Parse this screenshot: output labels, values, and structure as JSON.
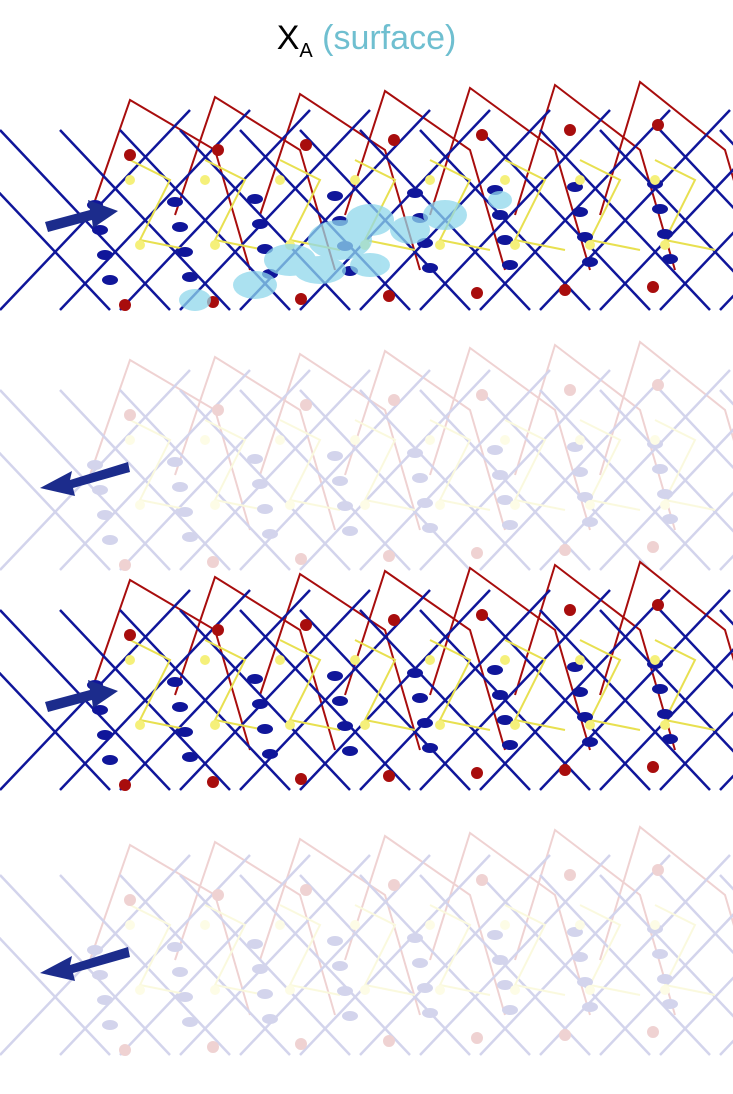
{
  "title": {
    "symbol": "X",
    "subscript": "A",
    "qualifier": "(surface)"
  },
  "layers": [
    {
      "id": "layer-1",
      "faded": false,
      "spin": "right",
      "exciton": true
    },
    {
      "id": "layer-2",
      "faded": true,
      "spin": "left",
      "exciton": false
    },
    {
      "id": "layer-3",
      "faded": false,
      "spin": "right",
      "exciton": false
    },
    {
      "id": "layer-4",
      "faded": true,
      "spin": "left",
      "exciton": false
    }
  ],
  "colors": {
    "metal_atom": "#10169a",
    "apical_atom": "#a80d0d",
    "ligand_atom": "#f5f07a",
    "spin_arrow": "#1c2c8c",
    "exciton_density": "#8fd8ec",
    "qualifier_text": "#6fbfd0"
  }
}
